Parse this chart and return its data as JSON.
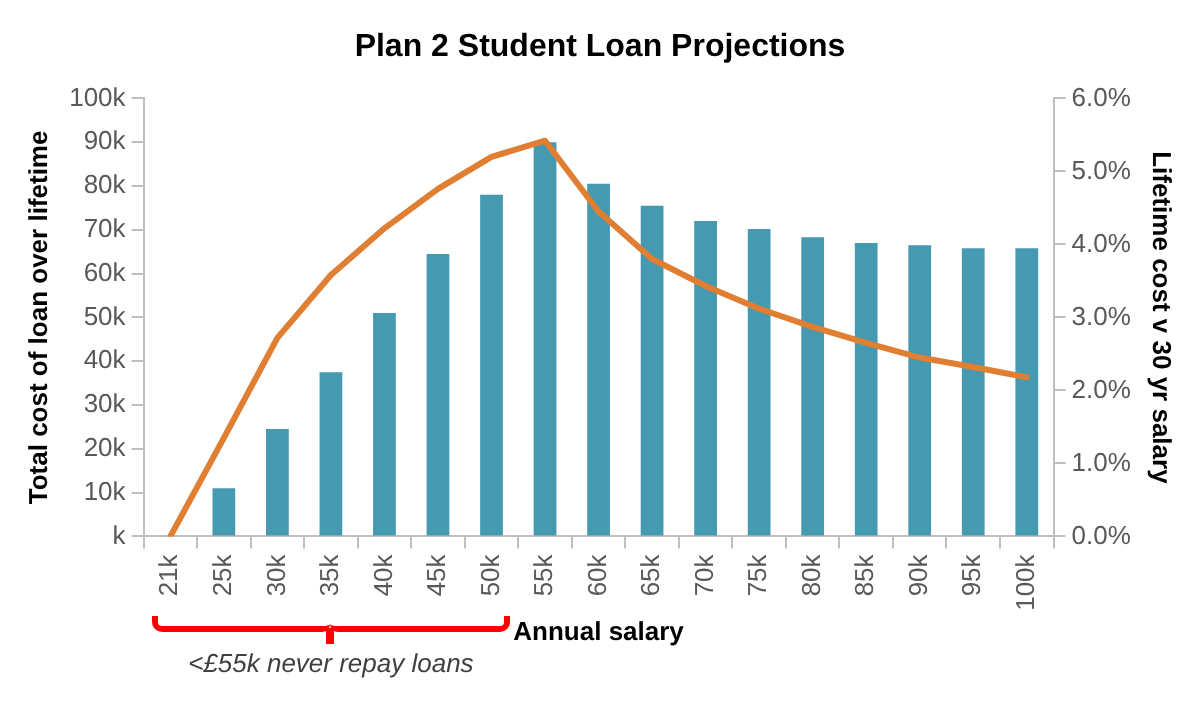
{
  "chart_data": {
    "type": "bar",
    "title": "Plan 2 Student Loan Projections",
    "xlabel": "Annual salary",
    "ylabel": "Total cost of loan over lifetime",
    "y2label": "Lifetime cost v 30 yr salary",
    "categories": [
      "21k",
      "25k",
      "30k",
      "35k",
      "40k",
      "45k",
      "50k",
      "55k",
      "60k",
      "65k",
      "70k",
      "75k",
      "80k",
      "85k",
      "90k",
      "95k",
      "100k"
    ],
    "series": [
      {
        "color": "#4599b1",
        "values": [
          0,
          11,
          24.5,
          37.5,
          51,
          64.5,
          78,
          90,
          80.5,
          75.5,
          72,
          70.2,
          68.3,
          67,
          66.5,
          65.8,
          65.8
        ]
      },
      {
        "type": "line",
        "axis": "y2",
        "color": "#e07e32",
        "values": [
          0,
          1.35,
          2.72,
          3.58,
          4.22,
          4.76,
          5.2,
          5.42,
          4.45,
          3.8,
          3.43,
          3.12,
          2.87,
          2.65,
          2.45,
          2.32,
          2.18
        ]
      }
    ],
    "ylim": [
      0,
      100
    ],
    "yticks": [
      {
        "value": 0,
        "label": "k"
      },
      {
        "value": 10,
        "label": "10k"
      },
      {
        "value": 20,
        "label": "20k"
      },
      {
        "value": 30,
        "label": "30k"
      },
      {
        "value": 40,
        "label": "40k"
      },
      {
        "value": 50,
        "label": "50k"
      },
      {
        "value": 60,
        "label": "60k"
      },
      {
        "value": 70,
        "label": "70k"
      },
      {
        "value": 80,
        "label": "80k"
      },
      {
        "value": 90,
        "label": "90k"
      },
      {
        "value": 100,
        "label": "100k"
      }
    ],
    "y2lim": [
      0,
      6
    ],
    "y2ticks": [
      {
        "value": 0,
        "label": "0.0%"
      },
      {
        "value": 1,
        "label": "1.0%"
      },
      {
        "value": 2,
        "label": "2.0%"
      },
      {
        "value": 3,
        "label": "3.0%"
      },
      {
        "value": 4,
        "label": "4.0%"
      },
      {
        "value": 5,
        "label": "5.0%"
      },
      {
        "value": 6,
        "label": "6.0%"
      }
    ],
    "grid": false,
    "legend": false,
    "marker": "none",
    "line_style": "solid",
    "annotations": [
      "<£55k never repay loans"
    ]
  }
}
